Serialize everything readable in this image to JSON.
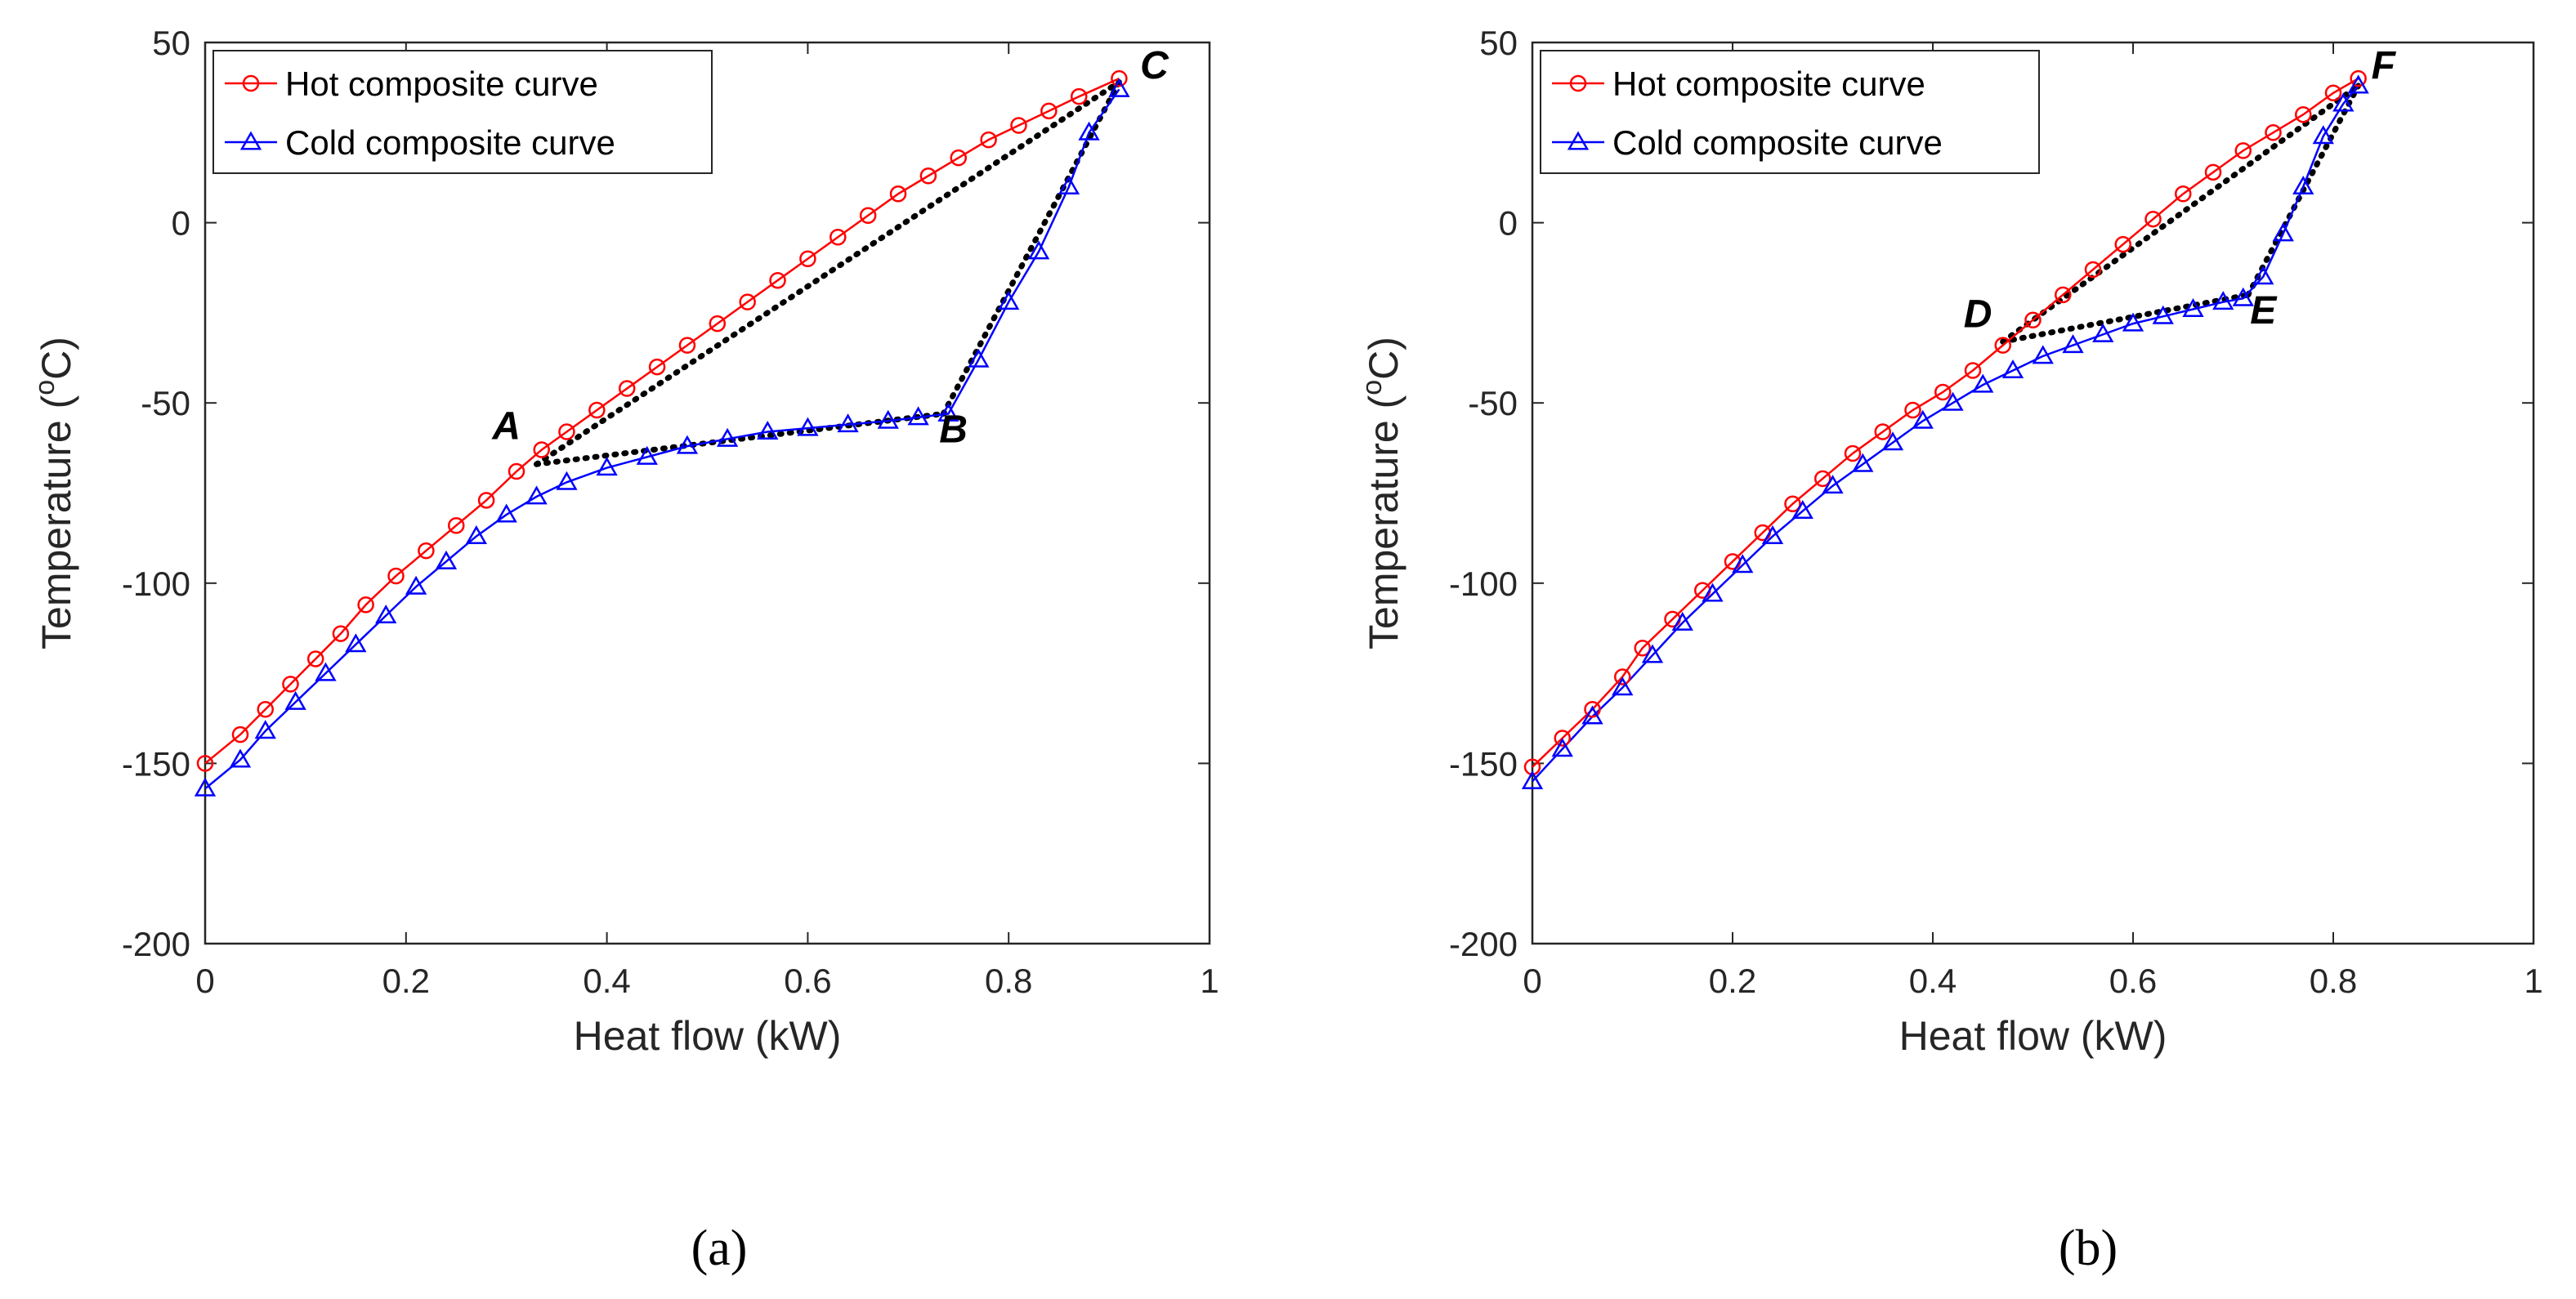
{
  "chart_data": [
    {
      "type": "line",
      "caption": "(a)",
      "xlabel": "Heat flow (kW)",
      "ylabel": {
        "base": "Temperature (",
        "sup": "o",
        "unit": "C)"
      },
      "xlim": [
        0,
        1
      ],
      "ylim": [
        -200,
        50
      ],
      "xticks": [
        0,
        0.2,
        0.4,
        0.6,
        0.8,
        1
      ],
      "xtick_labels": [
        "0",
        "0.2",
        "0.4",
        "0.6",
        "0.8",
        "1"
      ],
      "yticks": [
        -200,
        -150,
        -100,
        -50,
        0,
        50
      ],
      "ytick_labels": [
        "-200",
        "-150",
        "-100",
        "-50",
        "0",
        "50"
      ],
      "legend": {
        "position": "top-left",
        "entries": [
          "Hot composite curve",
          "Cold composite curve"
        ]
      },
      "series": [
        {
          "name": "Hot composite curve",
          "color": "#ff0000",
          "marker": "circle",
          "x": [
            0,
            0.035,
            0.06,
            0.085,
            0.11,
            0.135,
            0.16,
            0.19,
            0.22,
            0.25,
            0.28,
            0.31,
            0.335,
            0.36,
            0.39,
            0.42,
            0.45,
            0.48,
            0.51,
            0.54,
            0.57,
            0.6,
            0.63,
            0.66,
            0.69,
            0.72,
            0.75,
            0.78,
            0.81,
            0.84,
            0.87,
            0.91
          ],
          "y": [
            -150,
            -142,
            -135,
            -128,
            -121,
            -114,
            -106,
            -98,
            -91,
            -84,
            -77,
            -69,
            -63,
            -58,
            -52,
            -46,
            -40,
            -34,
            -28,
            -22,
            -16,
            -10,
            -4,
            2,
            8,
            13,
            18,
            23,
            27,
            31,
            35,
            40
          ]
        },
        {
          "name": "Cold composite curve",
          "color": "#0000ff",
          "marker": "triangle",
          "x": [
            0,
            0.035,
            0.06,
            0.09,
            0.12,
            0.15,
            0.18,
            0.21,
            0.24,
            0.27,
            0.3,
            0.33,
            0.36,
            0.4,
            0.44,
            0.48,
            0.52,
            0.56,
            0.6,
            0.64,
            0.68,
            0.71,
            0.74,
            0.77,
            0.8,
            0.83,
            0.86,
            0.88,
            0.91
          ],
          "y": [
            -157,
            -149,
            -141,
            -133,
            -125,
            -117,
            -109,
            -101,
            -94,
            -87,
            -81,
            -76,
            -72,
            -68,
            -65,
            -62,
            -60,
            -58,
            -57,
            -56,
            -55,
            -54,
            -53,
            -38,
            -22,
            -8,
            10,
            25,
            37
          ]
        }
      ],
      "annotations": [
        {
          "label": "A",
          "x": 0.3,
          "y": -60
        },
        {
          "label": "B",
          "x": 0.745,
          "y": -61
        },
        {
          "label": "C",
          "x": 0.945,
          "y": 40
        }
      ],
      "dotted_lines": [
        {
          "from": [
            0.33,
            -67
          ],
          "to": [
            0.91,
            39
          ]
        },
        {
          "from": [
            0.33,
            -67
          ],
          "to": [
            0.735,
            -53
          ]
        },
        {
          "from": [
            0.735,
            -53
          ],
          "to": [
            0.91,
            39
          ]
        }
      ]
    },
    {
      "type": "line",
      "caption": "(b)",
      "xlabel": "Heat flow (kW)",
      "ylabel": {
        "base": "Temperature (",
        "sup": "o",
        "unit": "C)"
      },
      "xlim": [
        0,
        1
      ],
      "ylim": [
        -200,
        50
      ],
      "xticks": [
        0,
        0.2,
        0.4,
        0.6,
        0.8,
        1
      ],
      "xtick_labels": [
        "0",
        "0.2",
        "0.4",
        "0.6",
        "0.8",
        "1"
      ],
      "yticks": [
        -200,
        -150,
        -100,
        -50,
        0,
        50
      ],
      "ytick_labels": [
        "-200",
        "-150",
        "-100",
        "-50",
        "0",
        "50"
      ],
      "legend": {
        "position": "top-left",
        "entries": [
          "Hot composite curve",
          "Cold composite curve"
        ]
      },
      "series": [
        {
          "name": "Hot composite curve",
          "color": "#ff0000",
          "marker": "circle",
          "x": [
            0,
            0.03,
            0.06,
            0.09,
            0.11,
            0.14,
            0.17,
            0.2,
            0.23,
            0.26,
            0.29,
            0.32,
            0.35,
            0.38,
            0.41,
            0.44,
            0.47,
            0.5,
            0.53,
            0.56,
            0.59,
            0.62,
            0.65,
            0.68,
            0.71,
            0.74,
            0.77,
            0.8,
            0.825
          ],
          "y": [
            -151,
            -143,
            -135,
            -126,
            -118,
            -110,
            -102,
            -94,
            -86,
            -78,
            -71,
            -64,
            -58,
            -52,
            -47,
            -41,
            -34,
            -27,
            -20,
            -13,
            -6,
            1,
            8,
            14,
            20,
            25,
            30,
            36,
            40
          ]
        },
        {
          "name": "Cold composite curve",
          "color": "#0000ff",
          "marker": "triangle",
          "x": [
            0,
            0.03,
            0.06,
            0.09,
            0.12,
            0.15,
            0.18,
            0.21,
            0.24,
            0.27,
            0.3,
            0.33,
            0.36,
            0.39,
            0.42,
            0.45,
            0.48,
            0.51,
            0.54,
            0.57,
            0.6,
            0.63,
            0.66,
            0.69,
            0.71,
            0.73,
            0.75,
            0.77,
            0.79,
            0.81,
            0.825
          ],
          "y": [
            -155,
            -146,
            -137,
            -129,
            -120,
            -111,
            -103,
            -95,
            -87,
            -80,
            -73,
            -67,
            -61,
            -55,
            -50,
            -45,
            -41,
            -37,
            -34,
            -31,
            -28,
            -26,
            -24,
            -22,
            -21,
            -15,
            -3,
            10,
            24,
            33,
            38
          ]
        }
      ],
      "annotations": [
        {
          "label": "D",
          "x": 0.445,
          "y": -29
        },
        {
          "label": "E",
          "x": 0.73,
          "y": -28
        },
        {
          "label": "F",
          "x": 0.85,
          "y": 40
        }
      ],
      "dotted_lines": [
        {
          "from": [
            0.47,
            -33
          ],
          "to": [
            0.825,
            38
          ]
        },
        {
          "from": [
            0.47,
            -33
          ],
          "to": [
            0.715,
            -20
          ]
        },
        {
          "from": [
            0.715,
            -20
          ],
          "to": [
            0.825,
            38
          ]
        }
      ]
    }
  ]
}
